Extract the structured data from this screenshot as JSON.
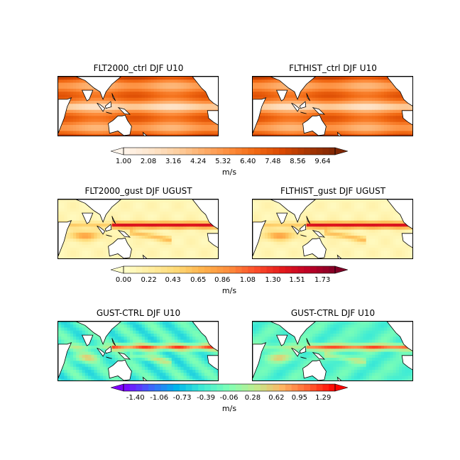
{
  "chart_data": {
    "type": "heatmap",
    "panels": [
      {
        "title": "FLT2000_ctrl DJF U10",
        "field": "u10",
        "scale": "oranges"
      },
      {
        "title": "FLTHIST_ctrl DJF U10",
        "field": "u10",
        "scale": "oranges"
      },
      {
        "title": "FLT2000_gust DJF UGUST",
        "field": "ugust",
        "scale": "ylorrd"
      },
      {
        "title": "FLTHIST_gust DJF UGUST",
        "field": "ugust",
        "scale": "ylorrd"
      },
      {
        "title": "GUST-CTRL DJF U10",
        "field": "diff",
        "scale": "rainbow"
      },
      {
        "title": "GUST-CTRL DJF U10",
        "field": "diff2",
        "scale": "rainbow"
      }
    ],
    "colorbars": [
      {
        "ticks": [
          "1.00",
          "2.08",
          "3.16",
          "4.24",
          "5.32",
          "6.40",
          "7.48",
          "8.56",
          "9.64"
        ],
        "unit": "m/s",
        "range": [
          1.0,
          10.18
        ],
        "colors": [
          "#fff5eb",
          "#fee6ce",
          "#fdd0a2",
          "#fdae6b",
          "#fd8d3c",
          "#f16913",
          "#d94801",
          "#a63603",
          "#7f2704"
        ]
      },
      {
        "ticks": [
          "0.00",
          "0.22",
          "0.43",
          "0.65",
          "0.86",
          "1.08",
          "1.30",
          "1.51",
          "1.73"
        ],
        "unit": "m/s",
        "range": [
          0.0,
          1.84
        ],
        "colors": [
          "#ffffcc",
          "#ffeda0",
          "#fed976",
          "#feb24c",
          "#fd8d3c",
          "#fc4e2a",
          "#e31a1c",
          "#bd0026",
          "#800026"
        ]
      },
      {
        "ticks": [
          "-1.40",
          "-1.06",
          "-0.73",
          "-0.39",
          "-0.06",
          "0.28",
          "0.62",
          "0.95",
          "1.29"
        ],
        "unit": "m/s",
        "range": [
          -1.57,
          1.46
        ],
        "colors": [
          "#8000ff",
          "#4062fa",
          "#00b5eb",
          "#40ecd4",
          "#80ffb4",
          "#c0eb8d",
          "#ffb462",
          "#ff6232",
          "#ff0000"
        ]
      }
    ]
  }
}
